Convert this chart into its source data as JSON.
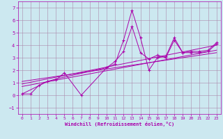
{
  "xlabel": "Windchill (Refroidissement éolien,°C)",
  "bg_color": "#cce8f0",
  "line_color": "#aa00aa",
  "grid_color": "#aa88aa",
  "xlim": [
    -0.5,
    23.5
  ],
  "ylim": [
    -1.5,
    7.5
  ],
  "xticks": [
    0,
    1,
    2,
    3,
    4,
    5,
    6,
    7,
    8,
    9,
    10,
    11,
    12,
    13,
    14,
    15,
    16,
    17,
    18,
    19,
    20,
    21,
    22,
    23
  ],
  "yticks": [
    -1,
    0,
    1,
    2,
    3,
    4,
    5,
    6,
    7
  ],
  "series1_x": [
    0,
    1,
    2,
    3,
    4,
    5,
    7,
    10,
    11,
    12,
    13,
    14,
    15,
    16,
    17,
    18,
    19,
    20,
    21,
    22,
    23
  ],
  "series1_y": [
    0.1,
    0.1,
    0.8,
    1.1,
    1.2,
    1.8,
    0.0,
    2.2,
    2.5,
    4.4,
    6.8,
    4.6,
    2.0,
    3.0,
    3.1,
    4.6,
    3.4,
    3.4,
    3.4,
    3.5,
    4.1
  ],
  "series2_x": [
    0,
    3,
    4,
    10,
    11,
    12,
    13,
    14,
    15,
    16,
    17,
    18,
    19,
    20,
    21,
    22,
    23
  ],
  "series2_y": [
    0.1,
    1.1,
    1.3,
    2.2,
    2.7,
    3.5,
    5.5,
    3.4,
    2.9,
    3.2,
    3.0,
    4.4,
    3.4,
    3.5,
    3.5,
    3.6,
    4.2
  ],
  "line1_x": [
    0,
    23
  ],
  "line1_y": [
    0.7,
    3.6
  ],
  "line2_x": [
    0,
    23
  ],
  "line2_y": [
    0.9,
    4.0
  ],
  "line3_x": [
    0,
    23
  ],
  "line3_y": [
    1.1,
    3.4
  ]
}
